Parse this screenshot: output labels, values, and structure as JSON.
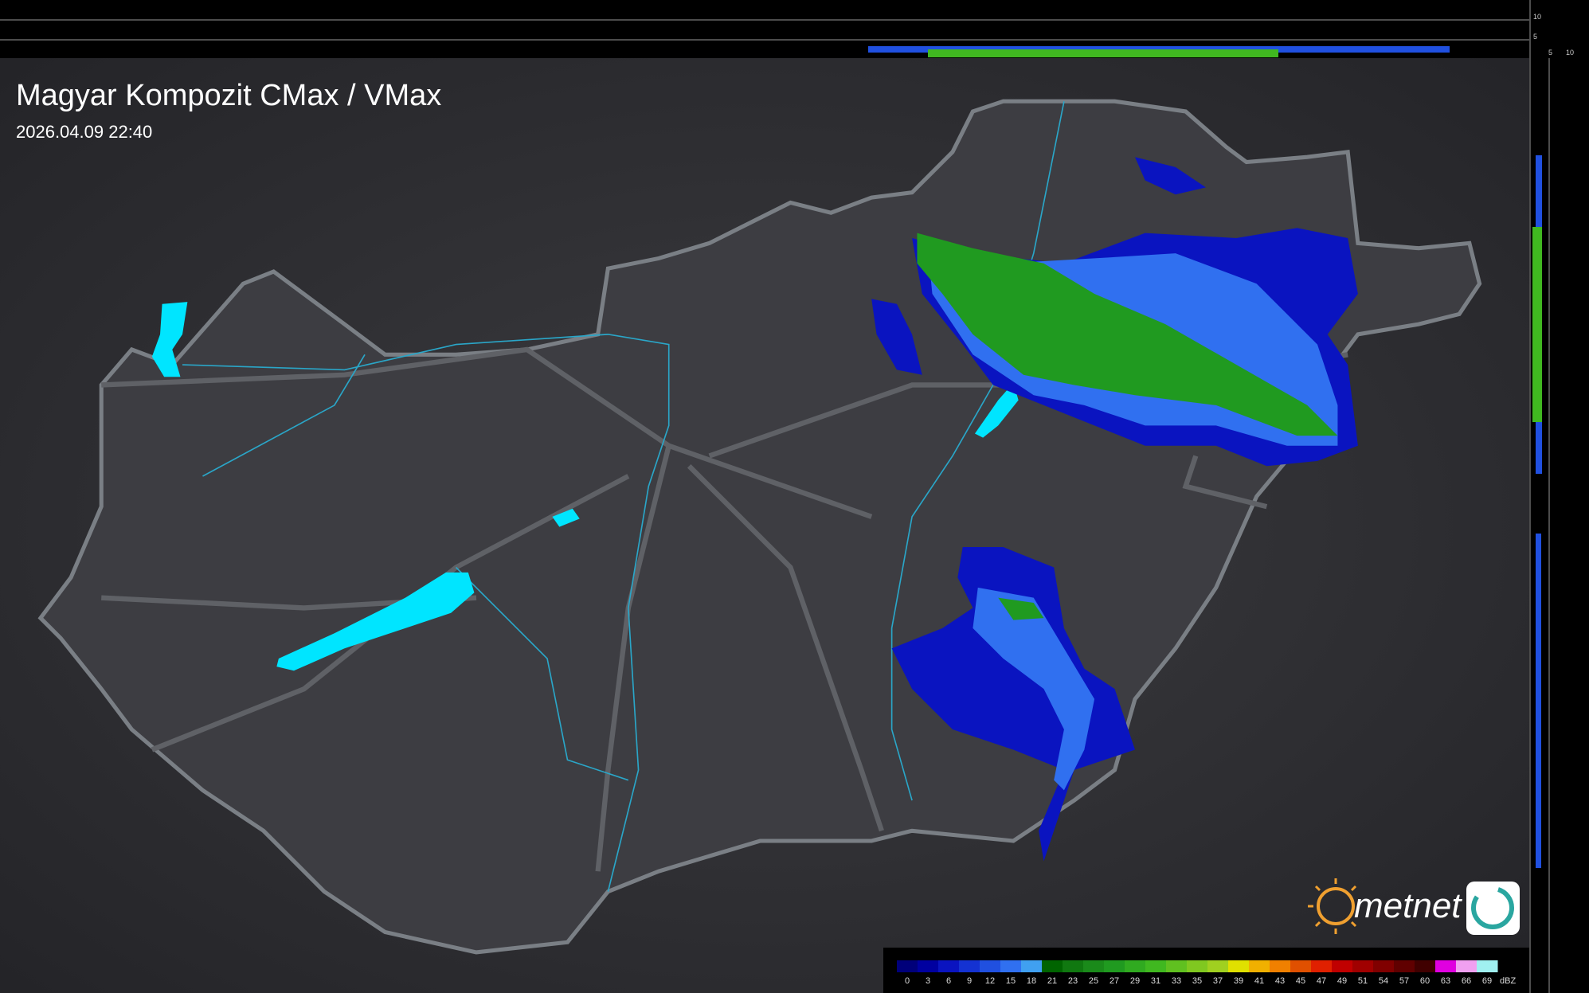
{
  "header": {
    "title": "Magyar Kompozit CMax / VMax",
    "timestamp": "2026.04.09 22:40"
  },
  "logo": {
    "text": "metnet"
  },
  "side_profile": {
    "vertical_axis_labels": [
      "10",
      "5"
    ],
    "horizontal_axis_labels": [
      "5",
      "10"
    ]
  },
  "legend": {
    "unit": "dBZ",
    "ticks": [
      0,
      3,
      6,
      9,
      12,
      15,
      18,
      21,
      23,
      25,
      27,
      29,
      31,
      33,
      35,
      37,
      39,
      41,
      43,
      45,
      47,
      49,
      51,
      54,
      57,
      60,
      63,
      66,
      69
    ],
    "colors": [
      "#00007a",
      "#0000a0",
      "#0a14c0",
      "#1432d2",
      "#2050e0",
      "#3070f0",
      "#40a0f0",
      "#006400",
      "#107810",
      "#1a8a1a",
      "#209a20",
      "#30aa20",
      "#40b820",
      "#60c020",
      "#80c820",
      "#a0d020",
      "#e0e000",
      "#f0b000",
      "#f08000",
      "#e05000",
      "#e02000",
      "#c00000",
      "#a00000",
      "#800000",
      "#600000",
      "#400000",
      "#e000e0",
      "#f0a0f0",
      "#a0f0f0"
    ]
  }
}
